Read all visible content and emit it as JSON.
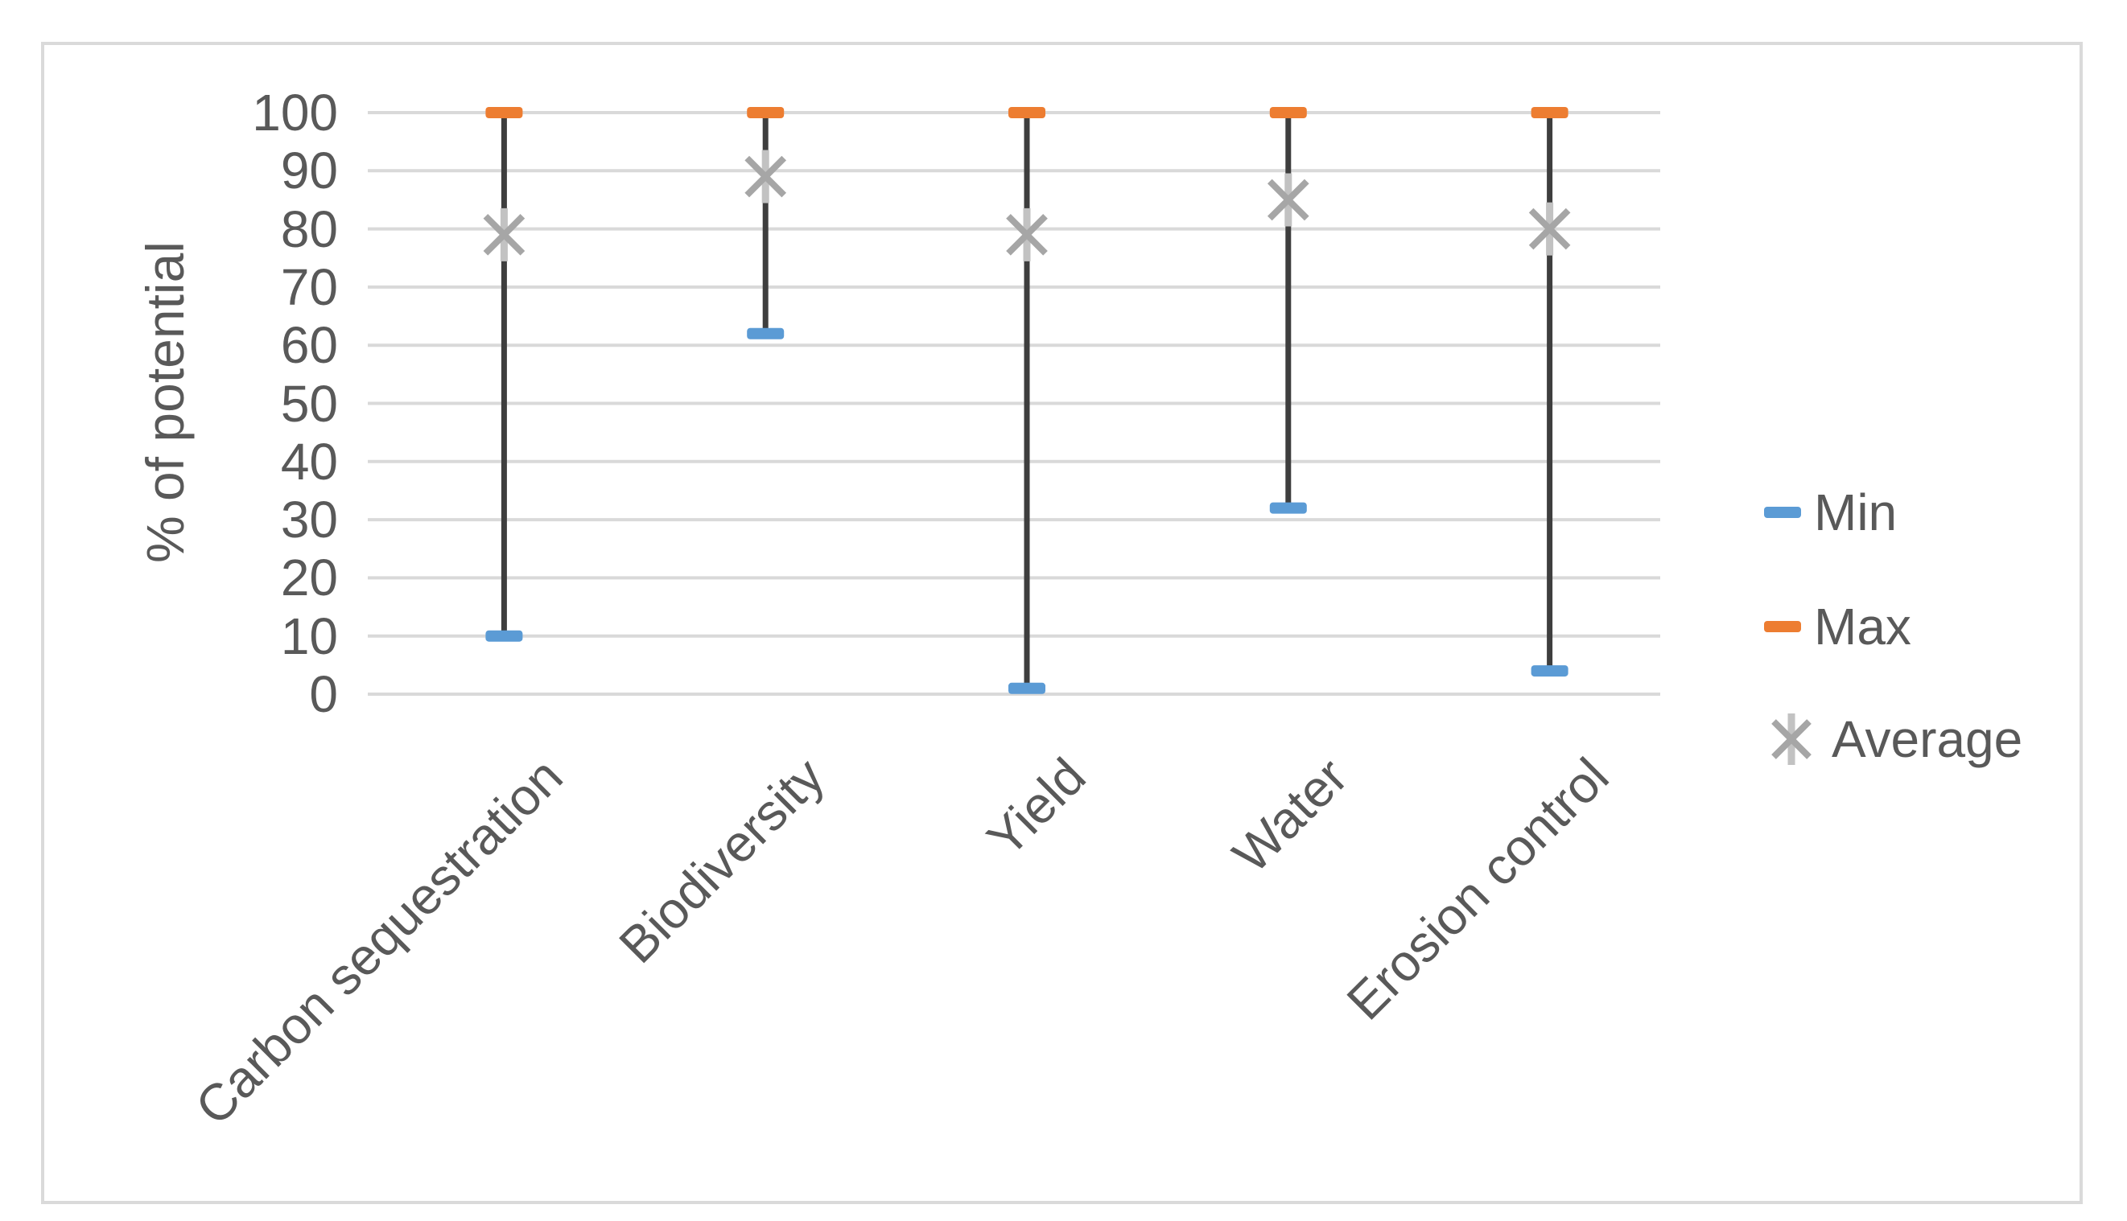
{
  "chart_data": {
    "type": "hilo-range",
    "title": "",
    "xlabel": "",
    "ylabel": "% of potential",
    "categories": [
      "Carbon sequestration",
      "Biodiversity",
      "Yield",
      "Water",
      "Erosion control"
    ],
    "series": [
      {
        "name": "Min",
        "marker": "dash",
        "color": "#5B9BD5",
        "values": [
          10,
          62,
          1,
          32,
          4
        ]
      },
      {
        "name": "Max",
        "marker": "dash",
        "color": "#ED7D31",
        "values": [
          100,
          100,
          100,
          100,
          100
        ]
      },
      {
        "name": "Average",
        "marker": "star",
        "color": "#A6A6A6",
        "values": [
          79,
          89,
          79,
          85,
          80
        ]
      }
    ],
    "y_axis": {
      "min": 0,
      "max": 100,
      "step": 10,
      "tick_labels": [
        "0",
        "10",
        "20",
        "30",
        "40",
        "50",
        "60",
        "70",
        "80",
        "90",
        "100"
      ]
    },
    "grid": true,
    "legend_position": "right",
    "colors": {
      "hilo_line": "#3E3E3E",
      "gridline": "#D9D9D9",
      "text": "#595959",
      "frame_border": "#DADADA",
      "star_vertical": "#C2C2C2"
    }
  }
}
